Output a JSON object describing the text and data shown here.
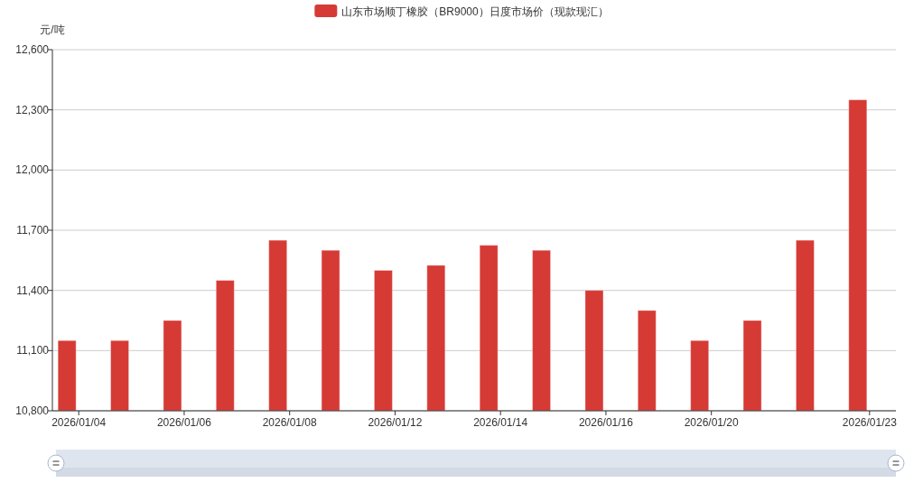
{
  "chart_data": {
    "type": "bar",
    "ylabel": "元/吨",
    "categories": [
      "2026/01/04",
      null,
      "2026/01/06",
      null,
      "2026/01/08",
      null,
      "2026/01/12",
      null,
      "2026/01/14",
      null,
      "2026/01/16",
      null,
      "2026/01/20",
      null,
      null,
      "2026/01/23"
    ],
    "series": [
      {
        "name": "山东市场顺丁橡胶（BR9000）日度市场价（现款现汇）",
        "color": "#d63a35",
        "values": [
          11150,
          11150,
          11250,
          11450,
          11650,
          11600,
          11500,
          11525,
          11625,
          11600,
          11400,
          11300,
          11150,
          11250,
          11650,
          12350
        ]
      }
    ],
    "ylim": [
      10800,
      12600
    ],
    "yticks": [
      {
        "value": 10800,
        "label": "10,800"
      },
      {
        "value": 11100,
        "label": "11,100"
      },
      {
        "value": 11400,
        "label": "11,400"
      },
      {
        "value": 11700,
        "label": "11,700"
      },
      {
        "value": 12000,
        "label": "12,000"
      },
      {
        "value": 12300,
        "label": "12,300"
      },
      {
        "value": 12600,
        "label": "12,600"
      }
    ],
    "grid": "y",
    "legend": "top"
  }
}
